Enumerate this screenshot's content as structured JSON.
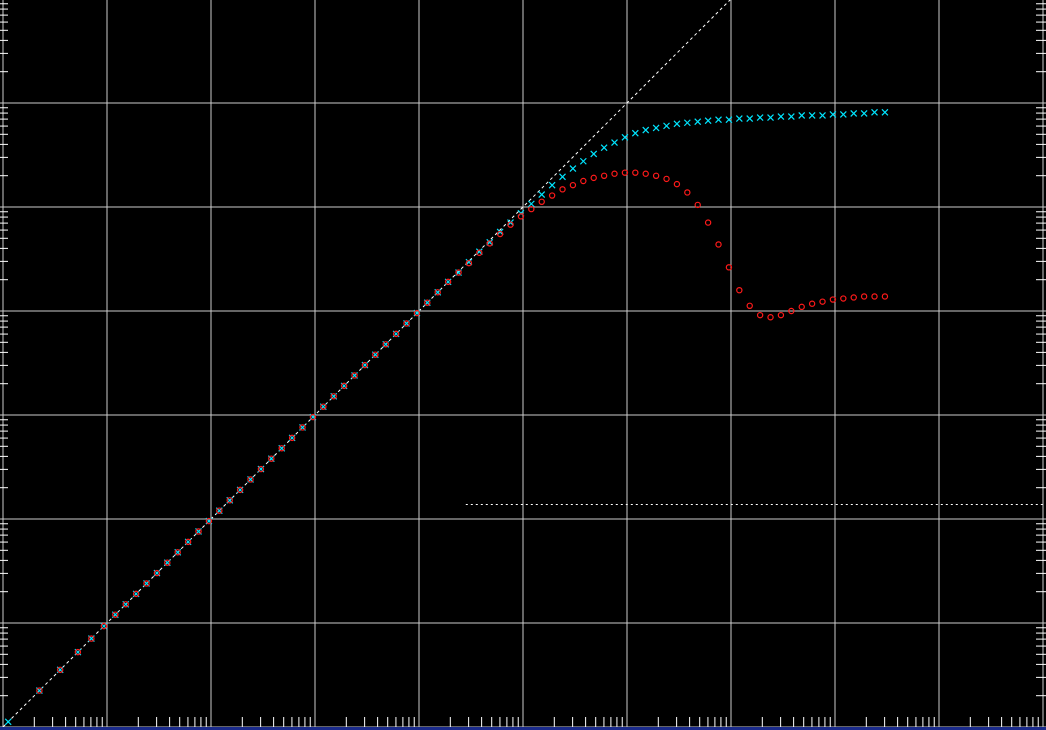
{
  "chart_data": {
    "type": "scatter",
    "title": "",
    "xlabel": "",
    "ylabel": "",
    "x_scale": "log",
    "y_scale": "log",
    "x_decades_log10": [
      0,
      10
    ],
    "y_decades_log10": [
      0,
      7
    ],
    "grid": true,
    "tick_labels_visible": false,
    "reference_lines": [
      {
        "kind": "diagonal",
        "description": "y = x",
        "style": "dotted",
        "color": "#ffffff"
      },
      {
        "kind": "horizontal",
        "log10_y": 2.14,
        "from_log10_x": 4.45,
        "to_log10_x": 10,
        "style": "dotted",
        "color": "#ffffff"
      }
    ],
    "series": [
      {
        "marker": "x",
        "color": "#00e5ff",
        "points_log10": [
          [
            0.05,
            0.05
          ],
          [
            0.35,
            0.35
          ],
          [
            0.55,
            0.55
          ],
          [
            0.72,
            0.72
          ],
          [
            0.85,
            0.85
          ],
          [
            0.97,
            0.97
          ],
          [
            1.08,
            1.08
          ],
          [
            1.18,
            1.18
          ],
          [
            1.28,
            1.28
          ],
          [
            1.38,
            1.38
          ],
          [
            1.48,
            1.48
          ],
          [
            1.58,
            1.58
          ],
          [
            1.68,
            1.68
          ],
          [
            1.78,
            1.78
          ],
          [
            1.88,
            1.88
          ],
          [
            1.98,
            1.98
          ],
          [
            2.08,
            2.08
          ],
          [
            2.18,
            2.18
          ],
          [
            2.28,
            2.28
          ],
          [
            2.38,
            2.38
          ],
          [
            2.48,
            2.48
          ],
          [
            2.58,
            2.58
          ],
          [
            2.68,
            2.68
          ],
          [
            2.78,
            2.78
          ],
          [
            2.88,
            2.88
          ],
          [
            2.98,
            2.98
          ],
          [
            3.08,
            3.08
          ],
          [
            3.18,
            3.18
          ],
          [
            3.28,
            3.28
          ],
          [
            3.38,
            3.38
          ],
          [
            3.48,
            3.48
          ],
          [
            3.58,
            3.58
          ],
          [
            3.68,
            3.68
          ],
          [
            3.78,
            3.78
          ],
          [
            3.88,
            3.88
          ],
          [
            3.98,
            3.98
          ],
          [
            4.08,
            4.08
          ],
          [
            4.18,
            4.18
          ],
          [
            4.28,
            4.28
          ],
          [
            4.38,
            4.37
          ],
          [
            4.48,
            4.47
          ],
          [
            4.58,
            4.57
          ],
          [
            4.68,
            4.66
          ],
          [
            4.78,
            4.76
          ],
          [
            4.88,
            4.85
          ],
          [
            4.98,
            4.94
          ],
          [
            5.08,
            5.03
          ],
          [
            5.18,
            5.12
          ],
          [
            5.28,
            5.21
          ],
          [
            5.38,
            5.29
          ],
          [
            5.48,
            5.37
          ],
          [
            5.58,
            5.44
          ],
          [
            5.68,
            5.51
          ],
          [
            5.78,
            5.57
          ],
          [
            5.88,
            5.62
          ],
          [
            5.98,
            5.67
          ],
          [
            6.08,
            5.71
          ],
          [
            6.18,
            5.74
          ],
          [
            6.28,
            5.76
          ],
          [
            6.38,
            5.78
          ],
          [
            6.48,
            5.8
          ],
          [
            6.58,
            5.81
          ],
          [
            6.68,
            5.82
          ],
          [
            6.78,
            5.83
          ],
          [
            6.88,
            5.84
          ],
          [
            6.98,
            5.84
          ],
          [
            7.08,
            5.85
          ],
          [
            7.18,
            5.85
          ],
          [
            7.28,
            5.86
          ],
          [
            7.38,
            5.86
          ],
          [
            7.48,
            5.87
          ],
          [
            7.58,
            5.87
          ],
          [
            7.68,
            5.88
          ],
          [
            7.78,
            5.88
          ],
          [
            7.88,
            5.88
          ],
          [
            7.98,
            5.89
          ],
          [
            8.08,
            5.89
          ],
          [
            8.18,
            5.9
          ],
          [
            8.28,
            5.9
          ],
          [
            8.38,
            5.91
          ],
          [
            8.48,
            5.91
          ]
        ]
      },
      {
        "marker": "o",
        "color": "#ff1a1a",
        "points_log10": [
          [
            0.35,
            0.35
          ],
          [
            0.55,
            0.55
          ],
          [
            0.72,
            0.72
          ],
          [
            0.85,
            0.85
          ],
          [
            0.97,
            0.97
          ],
          [
            1.08,
            1.08
          ],
          [
            1.18,
            1.18
          ],
          [
            1.28,
            1.28
          ],
          [
            1.38,
            1.38
          ],
          [
            1.48,
            1.48
          ],
          [
            1.58,
            1.58
          ],
          [
            1.68,
            1.68
          ],
          [
            1.78,
            1.78
          ],
          [
            1.88,
            1.88
          ],
          [
            1.98,
            1.98
          ],
          [
            2.08,
            2.08
          ],
          [
            2.18,
            2.18
          ],
          [
            2.28,
            2.28
          ],
          [
            2.38,
            2.38
          ],
          [
            2.48,
            2.48
          ],
          [
            2.58,
            2.58
          ],
          [
            2.68,
            2.68
          ],
          [
            2.78,
            2.78
          ],
          [
            2.88,
            2.88
          ],
          [
            2.98,
            2.98
          ],
          [
            3.08,
            3.08
          ],
          [
            3.18,
            3.18
          ],
          [
            3.28,
            3.28
          ],
          [
            3.38,
            3.38
          ],
          [
            3.48,
            3.48
          ],
          [
            3.58,
            3.58
          ],
          [
            3.68,
            3.68
          ],
          [
            3.78,
            3.78
          ],
          [
            3.88,
            3.88
          ],
          [
            3.98,
            3.98
          ],
          [
            4.08,
            4.08
          ],
          [
            4.18,
            4.18
          ],
          [
            4.28,
            4.28
          ],
          [
            4.38,
            4.37
          ],
          [
            4.48,
            4.46
          ],
          [
            4.58,
            4.56
          ],
          [
            4.68,
            4.65
          ],
          [
            4.78,
            4.74
          ],
          [
            4.88,
            4.83
          ],
          [
            4.98,
            4.91
          ],
          [
            5.08,
            4.98
          ],
          [
            5.18,
            5.05
          ],
          [
            5.28,
            5.11
          ],
          [
            5.38,
            5.17
          ],
          [
            5.48,
            5.21
          ],
          [
            5.58,
            5.25
          ],
          [
            5.68,
            5.28
          ],
          [
            5.78,
            5.3
          ],
          [
            5.88,
            5.32
          ],
          [
            5.98,
            5.33
          ],
          [
            6.08,
            5.33
          ],
          [
            6.18,
            5.32
          ],
          [
            6.28,
            5.3
          ],
          [
            6.38,
            5.27
          ],
          [
            6.48,
            5.22
          ],
          [
            6.58,
            5.14
          ],
          [
            6.68,
            5.02
          ],
          [
            6.78,
            4.85
          ],
          [
            6.88,
            4.64
          ],
          [
            6.98,
            4.42
          ],
          [
            7.08,
            4.2
          ],
          [
            7.18,
            4.05
          ],
          [
            7.28,
            3.96
          ],
          [
            7.38,
            3.94
          ],
          [
            7.48,
            3.96
          ],
          [
            7.58,
            4.0
          ],
          [
            7.68,
            4.04
          ],
          [
            7.78,
            4.07
          ],
          [
            7.88,
            4.09
          ],
          [
            7.98,
            4.11
          ],
          [
            8.08,
            4.12
          ],
          [
            8.18,
            4.13
          ],
          [
            8.28,
            4.14
          ],
          [
            8.38,
            4.14
          ],
          [
            8.48,
            4.14
          ]
        ]
      }
    ]
  },
  "colors": {
    "background": "#000000",
    "grid": "#cccccc",
    "ticks": "#ffffff",
    "reference": "#ffffff",
    "bottom_strip": "#1a2a8a"
  }
}
